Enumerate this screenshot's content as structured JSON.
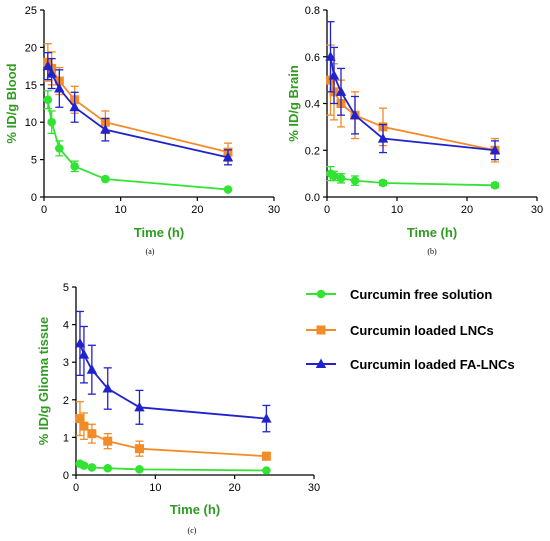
{
  "colors": {
    "free": "#33e333",
    "lnc": "#f28c28",
    "fa": "#2222cc",
    "axis_title": "#2e9c1f"
  },
  "legend": [
    {
      "key": "free",
      "label": "Curcumin free solution",
      "marker": "circle"
    },
    {
      "key": "lnc",
      "label": "Curcumin loaded LNCs",
      "marker": "square"
    },
    {
      "key": "fa",
      "label": "Curcumin loaded FA-LNCs",
      "marker": "triangle"
    }
  ],
  "chart_data": [
    {
      "type": "line",
      "panel_label": "(a)",
      "xlabel": "Time (h)",
      "ylabel": "% ID/g Blood",
      "xlim": [
        0,
        30
      ],
      "ylim": [
        0,
        25
      ],
      "xticks": [
        0,
        10,
        20,
        30
      ],
      "yticks": [
        0,
        5,
        10,
        15,
        20,
        25
      ],
      "x": [
        0.5,
        1,
        2,
        4,
        8,
        24
      ],
      "series": [
        {
          "key": "free",
          "name": "Curcumin free solution",
          "values": [
            13,
            10,
            6.5,
            4.1,
            2.4,
            1.0
          ],
          "errors": [
            1.2,
            1.5,
            1.0,
            0.7,
            0.2,
            0.1
          ]
        },
        {
          "key": "lnc",
          "name": "Curcumin loaded LNCs",
          "values": [
            18,
            17.2,
            15.5,
            13,
            10,
            6
          ],
          "errors": [
            2.5,
            2.2,
            1.8,
            1.8,
            1.5,
            1.2
          ]
        },
        {
          "key": "fa",
          "name": "Curcumin loaded FA-LNCs",
          "values": [
            17.5,
            16.5,
            14.5,
            12,
            9,
            5.3
          ],
          "errors": [
            1.8,
            2.0,
            2.5,
            2.0,
            1.5,
            1.0
          ]
        }
      ]
    },
    {
      "type": "line",
      "panel_label": "(b)",
      "xlabel": "Time (h)",
      "ylabel": "% ID/g Brain",
      "xlim": [
        0,
        30
      ],
      "ylim": [
        0,
        0.8
      ],
      "xticks": [
        0,
        10,
        20,
        30
      ],
      "yticks": [
        0.0,
        0.2,
        0.4,
        0.6,
        0.8
      ],
      "x": [
        0.5,
        1,
        2,
        4,
        8,
        24
      ],
      "series": [
        {
          "key": "free",
          "name": "Curcumin free solution",
          "values": [
            0.1,
            0.09,
            0.08,
            0.07,
            0.06,
            0.05
          ],
          "errors": [
            0.03,
            0.02,
            0.02,
            0.02,
            0.01,
            0.01
          ]
        },
        {
          "key": "lnc",
          "name": "Curcumin loaded LNCs",
          "values": [
            0.5,
            0.45,
            0.4,
            0.35,
            0.3,
            0.2
          ],
          "errors": [
            0.15,
            0.12,
            0.1,
            0.1,
            0.08,
            0.05
          ]
        },
        {
          "key": "fa",
          "name": "Curcumin loaded FA-LNCs",
          "values": [
            0.6,
            0.52,
            0.45,
            0.35,
            0.25,
            0.2
          ],
          "errors": [
            0.15,
            0.12,
            0.1,
            0.08,
            0.06,
            0.04
          ]
        }
      ]
    },
    {
      "type": "line",
      "panel_label": "(c)",
      "xlabel": "Time (h)",
      "ylabel": "% ID/g Glioma tissue",
      "xlim": [
        0,
        30
      ],
      "ylim": [
        0,
        5
      ],
      "xticks": [
        0,
        10,
        20,
        30
      ],
      "yticks": [
        0,
        1,
        2,
        3,
        4,
        5
      ],
      "x": [
        0.5,
        1,
        2,
        4,
        8,
        24
      ],
      "series": [
        {
          "key": "free",
          "name": "Curcumin free solution",
          "values": [
            0.3,
            0.25,
            0.2,
            0.18,
            0.15,
            0.12
          ],
          "errors": [
            0.05,
            0.05,
            0.04,
            0.03,
            0.03,
            0.02
          ]
        },
        {
          "key": "lnc",
          "name": "Curcumin loaded LNCs",
          "values": [
            1.5,
            1.3,
            1.1,
            0.9,
            0.7,
            0.5
          ],
          "errors": [
            0.45,
            0.35,
            0.25,
            0.2,
            0.2,
            0.1
          ]
        },
        {
          "key": "fa",
          "name": "Curcumin loaded FA-LNCs",
          "values": [
            3.5,
            3.2,
            2.8,
            2.3,
            1.8,
            1.5
          ],
          "errors": [
            0.85,
            0.75,
            0.65,
            0.55,
            0.45,
            0.35
          ]
        }
      ]
    }
  ]
}
